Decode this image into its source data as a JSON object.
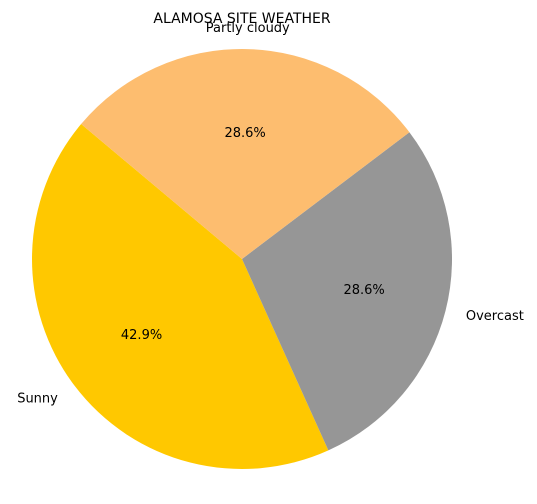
{
  "chart_data": {
    "type": "pie",
    "title": "ALAMOSA SITE WEATHER",
    "categories": [
      "Sunny",
      "Overcast",
      "Partly cloudy"
    ],
    "values": [
      42.9,
      28.6,
      28.6
    ],
    "percent_labels": [
      "42.9%",
      "28.6%",
      "28.6%"
    ],
    "colors": [
      "#ffc800",
      "#969696",
      "#fdbd6f"
    ],
    "start_angle_deg": 140,
    "direction": "counterclockwise",
    "legend": "none"
  }
}
